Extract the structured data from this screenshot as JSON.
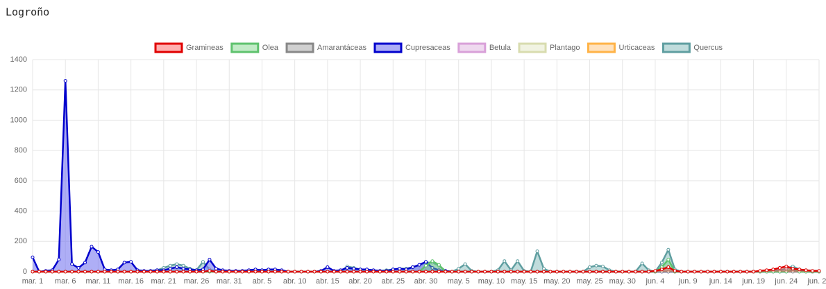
{
  "chart_data": {
    "type": "line",
    "title": "Logroño",
    "categories": [
      "mar. 1",
      null,
      null,
      null,
      null,
      "mar. 6",
      null,
      null,
      null,
      null,
      "mar. 11",
      null,
      null,
      null,
      null,
      "mar. 16",
      null,
      null,
      null,
      null,
      "mar. 21",
      null,
      null,
      null,
      null,
      "mar. 26",
      null,
      null,
      null,
      null,
      "mar. 31",
      null,
      null,
      null,
      null,
      "abr. 5",
      null,
      null,
      null,
      null,
      "abr. 10",
      null,
      null,
      null,
      null,
      "abr. 15",
      null,
      null,
      null,
      null,
      "abr. 20",
      null,
      null,
      null,
      null,
      "abr. 25",
      null,
      null,
      null,
      null,
      "abr. 30",
      null,
      null,
      null,
      null,
      "may. 5",
      null,
      null,
      null,
      null,
      "may. 10",
      null,
      null,
      null,
      null,
      "may. 15",
      null,
      null,
      null,
      null,
      "may. 20",
      null,
      null,
      null,
      null,
      "may. 25",
      null,
      null,
      null,
      null,
      "may. 30",
      null,
      null,
      null,
      null,
      "jun. 4",
      null,
      null,
      null,
      null,
      "jun. 9",
      null,
      null,
      null,
      null,
      "jun. 14",
      null,
      null,
      null,
      null,
      "jun. 19",
      null,
      null,
      null,
      null,
      "jun. 24",
      null,
      null,
      null,
      null,
      "jun. 29"
    ],
    "ylim": [
      0,
      1400
    ],
    "yticks": [
      0,
      200,
      400,
      600,
      800,
      1000,
      1200,
      1400
    ],
    "grid": true,
    "legend": "top",
    "series": [
      {
        "name": "Gramineas",
        "color": "#e00000",
        "fill": "rgba(255,80,80,0.45)",
        "values": [
          0,
          0,
          0,
          0,
          0,
          0,
          0,
          0,
          0,
          0,
          0,
          0,
          0,
          0,
          0,
          0,
          0,
          0,
          0,
          0,
          0,
          0,
          0,
          0,
          0,
          0,
          0,
          5,
          0,
          0,
          0,
          0,
          0,
          0,
          0,
          0,
          0,
          0,
          0,
          0,
          0,
          0,
          0,
          0,
          0,
          0,
          0,
          0,
          0,
          0,
          0,
          0,
          0,
          0,
          0,
          0,
          0,
          0,
          0,
          0,
          0,
          0,
          0,
          0,
          0,
          0,
          0,
          0,
          0,
          0,
          0,
          0,
          0,
          0,
          0,
          0,
          0,
          0,
          0,
          0,
          0,
          0,
          0,
          0,
          0,
          0,
          0,
          0,
          0,
          0,
          0,
          0,
          0,
          0,
          0,
          5,
          15,
          30,
          5,
          0,
          0,
          0,
          0,
          0,
          0,
          0,
          0,
          0,
          0,
          0,
          0,
          5,
          10,
          15,
          25,
          35,
          20,
          15,
          10,
          5,
          5
        ]
      },
      {
        "name": "Olea",
        "color": "#5ec26d",
        "fill": "rgba(120,210,130,0.45)",
        "values": [
          0,
          0,
          0,
          0,
          0,
          0,
          0,
          0,
          0,
          0,
          0,
          0,
          0,
          0,
          0,
          0,
          0,
          0,
          0,
          0,
          0,
          0,
          0,
          0,
          0,
          0,
          0,
          0,
          0,
          0,
          0,
          0,
          0,
          0,
          0,
          0,
          0,
          0,
          0,
          0,
          0,
          0,
          0,
          0,
          0,
          0,
          0,
          0,
          0,
          0,
          0,
          0,
          0,
          0,
          0,
          0,
          0,
          0,
          0,
          0,
          40,
          70,
          45,
          0,
          0,
          0,
          0,
          0,
          0,
          0,
          0,
          0,
          0,
          0,
          0,
          0,
          0,
          0,
          0,
          0,
          0,
          0,
          0,
          0,
          0,
          0,
          0,
          0,
          0,
          0,
          0,
          0,
          0,
          0,
          0,
          0,
          30,
          80,
          0,
          0,
          0,
          0,
          0,
          0,
          0,
          0,
          0,
          0,
          0,
          0,
          0,
          0,
          0,
          0,
          0,
          0,
          20,
          0,
          0,
          0,
          0
        ]
      },
      {
        "name": "Amarantáceas",
        "color": "#888888",
        "fill": "rgba(150,150,150,0.45)",
        "values": [
          0,
          0,
          0,
          0,
          0,
          0,
          0,
          0,
          0,
          0,
          0,
          0,
          0,
          0,
          0,
          0,
          0,
          0,
          0,
          0,
          0,
          0,
          0,
          0,
          0,
          0,
          0,
          0,
          0,
          0,
          0,
          0,
          0,
          0,
          0,
          0,
          0,
          0,
          0,
          0,
          0,
          0,
          0,
          0,
          0,
          0,
          0,
          0,
          0,
          0,
          0,
          0,
          0,
          0,
          0,
          0,
          0,
          0,
          0,
          0,
          0,
          0,
          0,
          0,
          0,
          0,
          0,
          0,
          0,
          0,
          0,
          0,
          0,
          0,
          0,
          0,
          0,
          0,
          0,
          0,
          0,
          0,
          0,
          0,
          0,
          0,
          0,
          0,
          0,
          0,
          0,
          0,
          0,
          0,
          0,
          0,
          0,
          0,
          0,
          0,
          0,
          0,
          0,
          0,
          0,
          0,
          0,
          0,
          0,
          0,
          0,
          0,
          0,
          0,
          0,
          0,
          0,
          0,
          0,
          0,
          0
        ]
      },
      {
        "name": "Cupresaceas",
        "color": "#0000cc",
        "fill": "rgba(120,120,240,0.6)",
        "values": [
          95,
          0,
          5,
          10,
          80,
          1260,
          50,
          25,
          60,
          165,
          130,
          15,
          10,
          15,
          60,
          65,
          10,
          5,
          5,
          10,
          10,
          20,
          30,
          20,
          15,
          10,
          15,
          80,
          20,
          10,
          5,
          5,
          5,
          10,
          15,
          10,
          15,
          15,
          10,
          0,
          0,
          0,
          0,
          0,
          5,
          30,
          5,
          10,
          25,
          20,
          15,
          15,
          10,
          5,
          5,
          15,
          20,
          15,
          30,
          45,
          65,
          25,
          10,
          5,
          0,
          0,
          0,
          0,
          0,
          0,
          0,
          0,
          0,
          0,
          0,
          0,
          0,
          0,
          0,
          0,
          0,
          0,
          0,
          0,
          0,
          0,
          0,
          0,
          0,
          0,
          0,
          0,
          0,
          0,
          0,
          0,
          0,
          0,
          0,
          0,
          0,
          0,
          0,
          0,
          0,
          0,
          0,
          0,
          0,
          0,
          0,
          0,
          0,
          0,
          0,
          0,
          5,
          5,
          0,
          0,
          0
        ]
      },
      {
        "name": "Betula",
        "color": "#d9a0d9",
        "fill": "rgba(220,170,220,0.45)",
        "values": [
          0,
          0,
          0,
          0,
          0,
          0,
          0,
          0,
          0,
          0,
          0,
          0,
          0,
          0,
          0,
          0,
          0,
          0,
          0,
          0,
          0,
          0,
          0,
          0,
          0,
          0,
          0,
          0,
          0,
          0,
          0,
          0,
          0,
          0,
          0,
          0,
          0,
          0,
          0,
          0,
          0,
          0,
          0,
          0,
          0,
          0,
          0,
          0,
          0,
          0,
          0,
          0,
          0,
          0,
          0,
          0,
          0,
          0,
          0,
          0,
          0,
          0,
          0,
          0,
          0,
          0,
          0,
          0,
          0,
          0,
          0,
          0,
          0,
          0,
          0,
          0,
          0,
          0,
          0,
          0,
          0,
          0,
          0,
          0,
          0,
          0,
          0,
          0,
          0,
          0,
          0,
          0,
          0,
          0,
          0,
          0,
          0,
          0,
          0,
          0,
          0,
          0,
          0,
          0,
          0,
          0,
          0,
          0,
          0,
          0,
          0,
          0,
          0,
          0,
          0,
          0,
          0,
          0,
          0,
          0,
          0
        ]
      },
      {
        "name": "Plantago",
        "color": "#d8dcaf",
        "fill": "rgba(225,228,190,0.45)",
        "values": [
          0,
          0,
          0,
          0,
          0,
          0,
          0,
          0,
          0,
          0,
          0,
          0,
          0,
          0,
          0,
          0,
          0,
          0,
          0,
          0,
          0,
          0,
          0,
          0,
          0,
          0,
          0,
          0,
          0,
          0,
          0,
          0,
          0,
          0,
          0,
          0,
          0,
          0,
          0,
          0,
          0,
          0,
          0,
          0,
          0,
          0,
          0,
          0,
          0,
          0,
          0,
          0,
          0,
          0,
          0,
          0,
          0,
          0,
          0,
          0,
          0,
          0,
          0,
          0,
          0,
          0,
          0,
          0,
          0,
          0,
          0,
          0,
          0,
          0,
          0,
          0,
          0,
          0,
          0,
          0,
          0,
          0,
          0,
          0,
          0,
          0,
          0,
          0,
          0,
          0,
          0,
          0,
          0,
          0,
          0,
          0,
          0,
          0,
          0,
          0,
          0,
          0,
          0,
          0,
          0,
          0,
          0,
          0,
          0,
          0,
          0,
          0,
          0,
          0,
          0,
          0,
          0,
          0,
          0,
          0,
          0
        ]
      },
      {
        "name": "Urticaceas",
        "color": "#ffb347",
        "fill": "rgba(255,190,110,0.45)",
        "values": [
          0,
          0,
          0,
          0,
          0,
          0,
          0,
          0,
          0,
          0,
          0,
          0,
          0,
          0,
          0,
          0,
          0,
          0,
          0,
          0,
          0,
          0,
          0,
          0,
          0,
          0,
          0,
          0,
          0,
          0,
          0,
          0,
          0,
          0,
          0,
          0,
          0,
          0,
          0,
          0,
          0,
          0,
          0,
          0,
          0,
          0,
          0,
          0,
          0,
          0,
          0,
          0,
          0,
          0,
          0,
          0,
          0,
          0,
          0,
          0,
          0,
          0,
          0,
          0,
          0,
          0,
          0,
          0,
          0,
          0,
          0,
          0,
          0,
          0,
          0,
          0,
          0,
          0,
          0,
          0,
          0,
          0,
          0,
          0,
          0,
          0,
          0,
          0,
          0,
          0,
          0,
          0,
          0,
          0,
          0,
          0,
          0,
          0,
          0,
          0,
          0,
          0,
          0,
          0,
          0,
          0,
          0,
          0,
          0,
          0,
          0,
          0,
          0,
          0,
          0,
          0,
          0,
          0,
          0,
          0,
          0
        ]
      },
      {
        "name": "Quercus",
        "color": "#5f9ea0",
        "fill": "rgba(130,185,185,0.5)",
        "values": [
          0,
          0,
          0,
          0,
          0,
          0,
          0,
          0,
          0,
          0,
          0,
          0,
          0,
          0,
          0,
          0,
          0,
          0,
          5,
          10,
          25,
          40,
          50,
          40,
          20,
          10,
          65,
          15,
          5,
          0,
          0,
          0,
          5,
          5,
          5,
          10,
          10,
          5,
          5,
          0,
          0,
          0,
          0,
          0,
          0,
          0,
          0,
          0,
          35,
          25,
          15,
          10,
          5,
          5,
          10,
          15,
          20,
          20,
          30,
          40,
          60,
          60,
          40,
          5,
          0,
          20,
          50,
          5,
          0,
          0,
          0,
          10,
          70,
          10,
          70,
          5,
          0,
          135,
          20,
          0,
          0,
          0,
          0,
          0,
          0,
          30,
          40,
          35,
          10,
          0,
          0,
          0,
          0,
          55,
          10,
          0,
          60,
          145,
          15,
          0,
          0,
          0,
          0,
          0,
          0,
          0,
          0,
          0,
          0,
          0,
          0,
          0,
          0,
          5,
          10,
          20,
          35,
          15,
          10,
          5,
          5
        ]
      }
    ]
  }
}
